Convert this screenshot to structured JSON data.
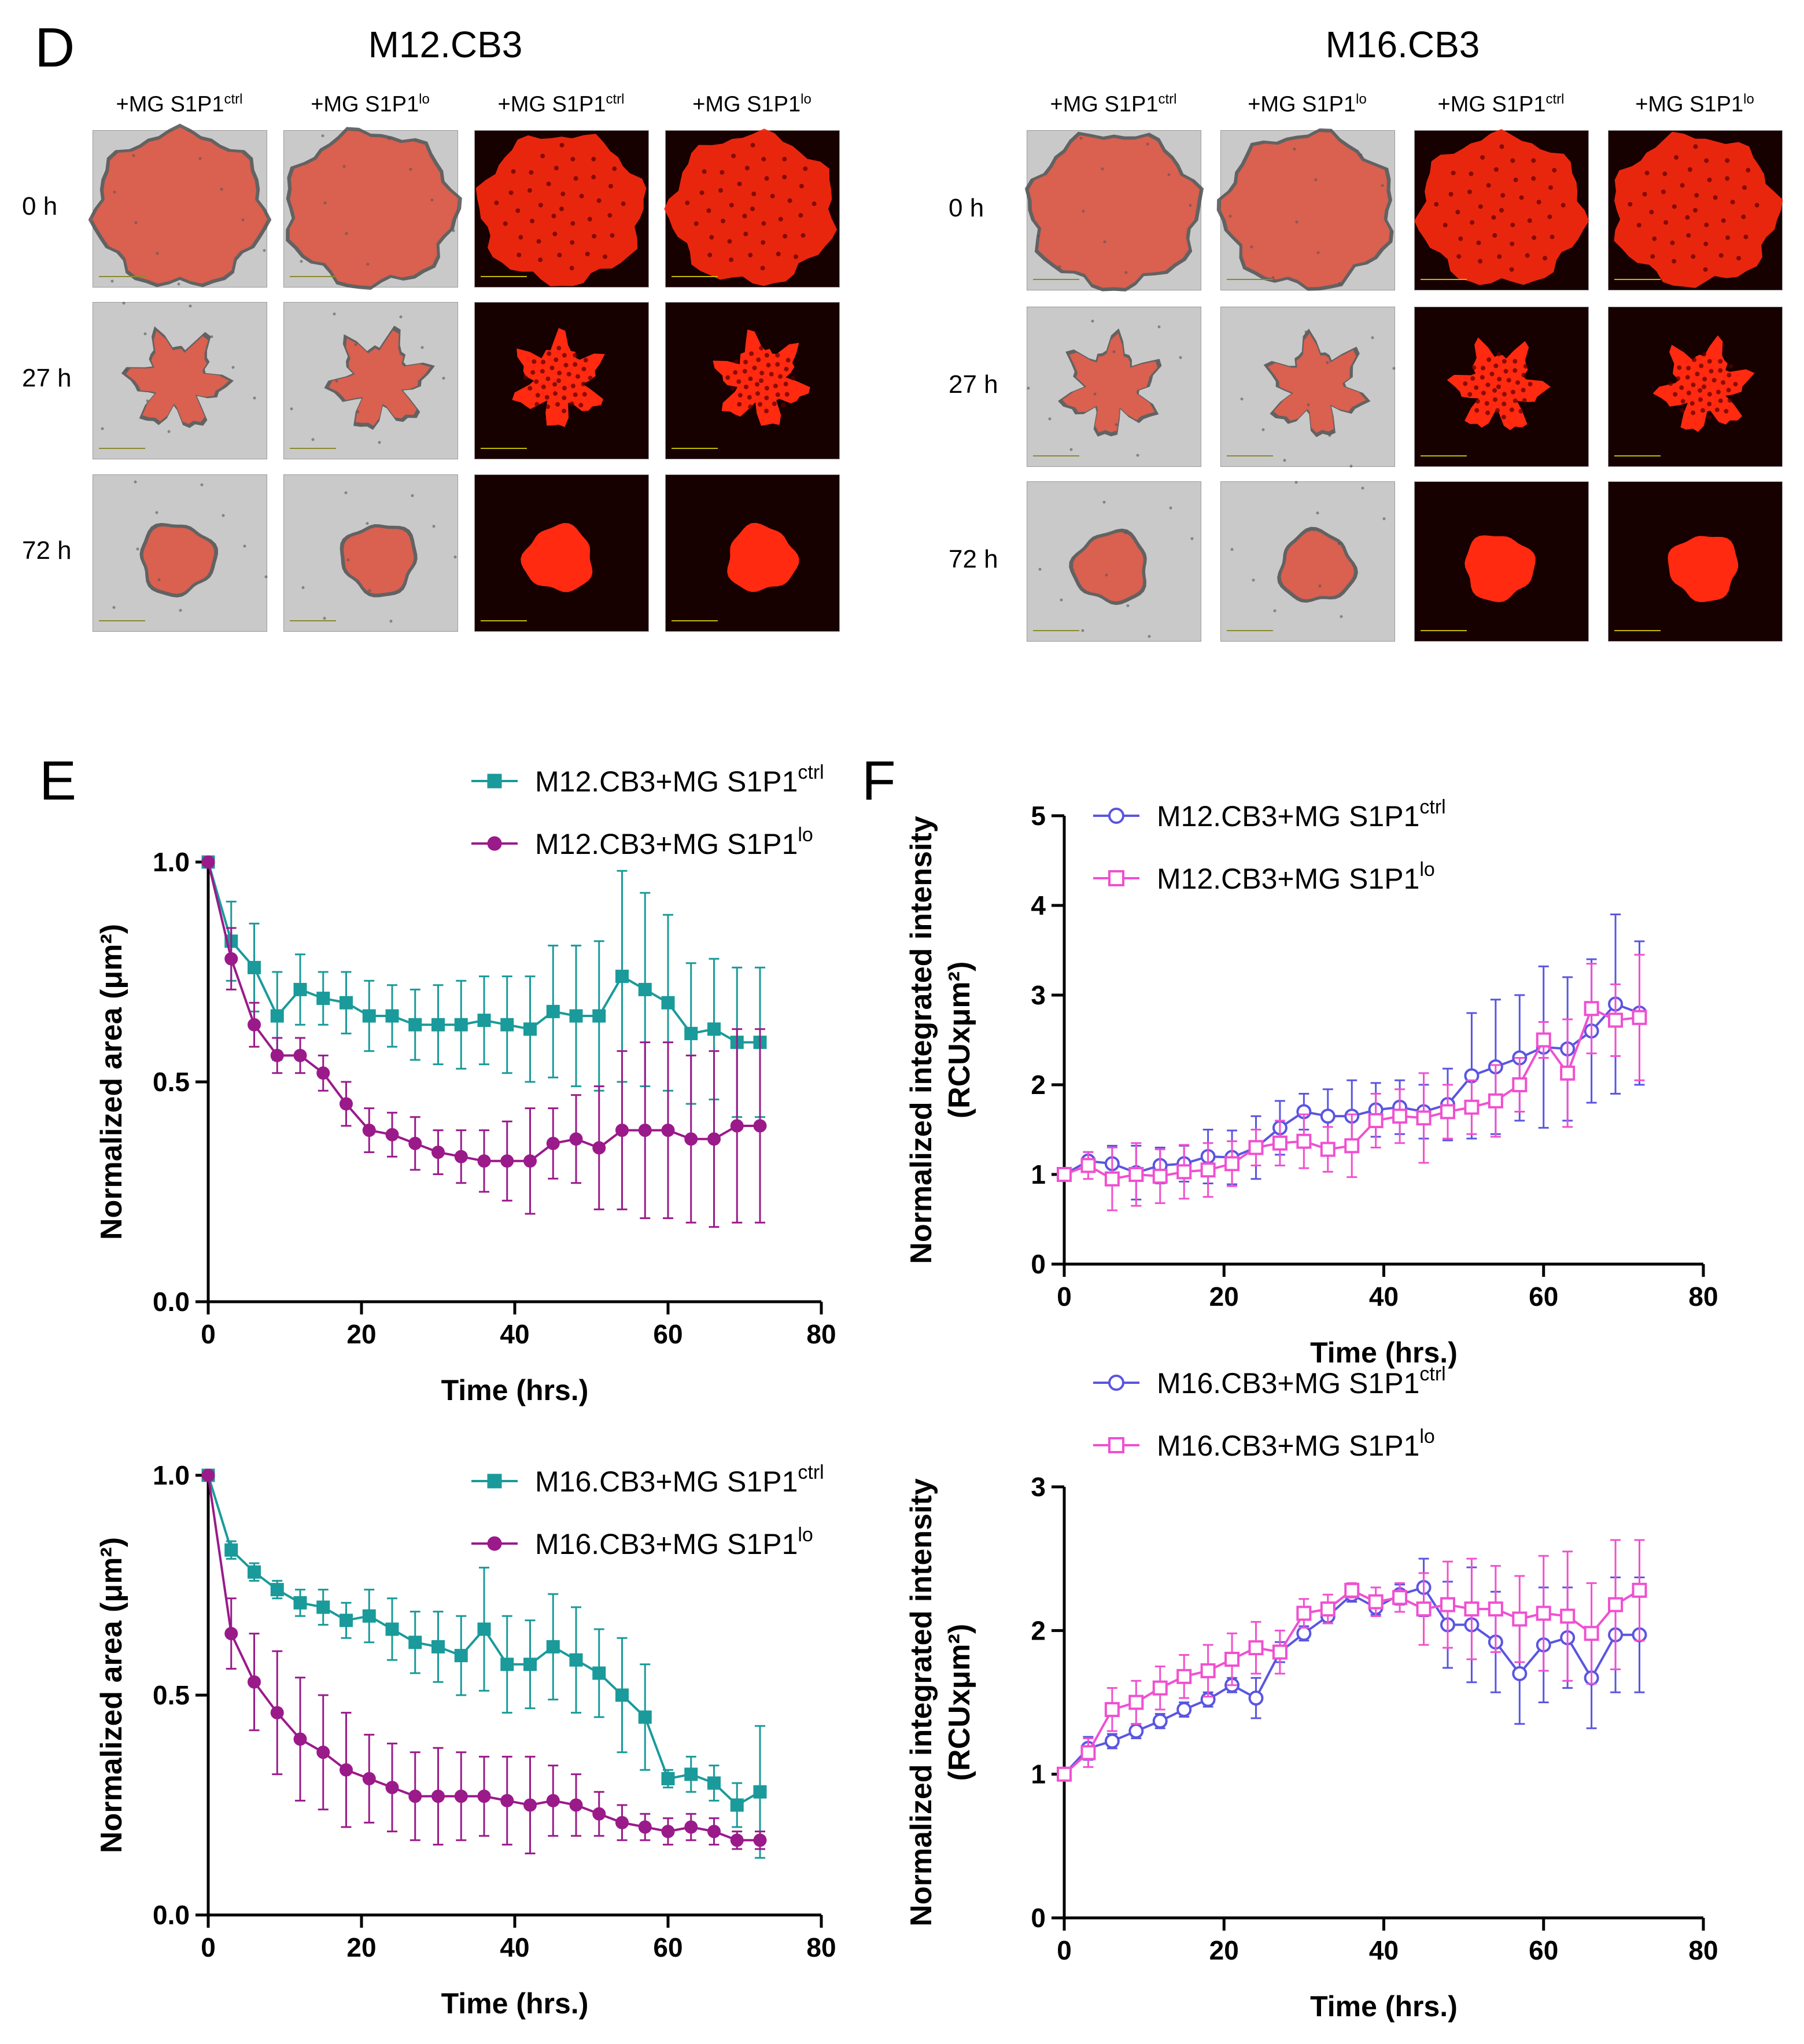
{
  "panel_labels": {
    "D": "D",
    "E": "E",
    "F": "F"
  },
  "microscopy": {
    "groups": [
      {
        "title": "M12.CB3",
        "columns": [
          {
            "base": "+MG S1P1",
            "sup": "ctrl"
          },
          {
            "base": "+MG S1P1",
            "sup": "lo"
          },
          {
            "base": "+MG S1P1",
            "sup": "ctrl"
          },
          {
            "base": "+MG S1P1",
            "sup": "lo"
          }
        ],
        "rows": [
          "0 h",
          "27 h",
          "72 h"
        ]
      },
      {
        "title": "M16.CB3",
        "columns": [
          {
            "base": "+MG S1P1",
            "sup": "ctrl"
          },
          {
            "base": "+MG S1P1",
            "sup": "lo"
          },
          {
            "base": "+MG S1P1",
            "sup": "ctrl"
          },
          {
            "base": "+MG S1P1",
            "sup": "lo"
          }
        ],
        "rows": [
          "0 h",
          "27 h",
          "72 h"
        ]
      }
    ],
    "colors": {
      "brightfield": "#c9c9c9",
      "fluorescence_bg": "#160000",
      "signal": "#ff2a10"
    }
  },
  "chart_data": [
    {
      "id": "E-top",
      "type": "line",
      "xlabel": "Time (hrs.)",
      "ylabel": "Normalized area (μm²)",
      "xlim": [
        0,
        80
      ],
      "ylim": [
        0,
        1.0
      ],
      "xticks": [
        "0",
        "20",
        "40",
        "60",
        "80"
      ],
      "yticks": [
        "0.0",
        "0.5",
        "1.0"
      ],
      "x": [
        0,
        3,
        6,
        9,
        12,
        15,
        18,
        21,
        24,
        27,
        30,
        33,
        36,
        39,
        42,
        45,
        48,
        51,
        54,
        57,
        60,
        63,
        66,
        69,
        72
      ],
      "series": [
        {
          "name": "M12.CB3+MG S1P1",
          "sup": "ctrl",
          "marker": "square",
          "color": "#1a9a9a",
          "values": [
            1.0,
            0.82,
            0.76,
            0.65,
            0.71,
            0.69,
            0.68,
            0.65,
            0.65,
            0.63,
            0.63,
            0.63,
            0.64,
            0.63,
            0.62,
            0.66,
            0.65,
            0.65,
            0.74,
            0.71,
            0.68,
            0.61,
            0.62,
            0.59,
            0.59
          ],
          "errors": [
            0,
            0.09,
            0.1,
            0.1,
            0.08,
            0.06,
            0.07,
            0.08,
            0.07,
            0.08,
            0.09,
            0.1,
            0.1,
            0.11,
            0.12,
            0.15,
            0.16,
            0.17,
            0.24,
            0.22,
            0.2,
            0.16,
            0.16,
            0.17,
            0.17
          ]
        },
        {
          "name": "M12.CB3+MG S1P1",
          "sup": "lo",
          "marker": "circle",
          "color": "#9a1a8a",
          "values": [
            1.0,
            0.78,
            0.63,
            0.56,
            0.56,
            0.52,
            0.45,
            0.39,
            0.38,
            0.36,
            0.34,
            0.33,
            0.32,
            0.32,
            0.32,
            0.36,
            0.37,
            0.35,
            0.39,
            0.39,
            0.39,
            0.37,
            0.37,
            0.4,
            0.4
          ],
          "errors": [
            0,
            0.07,
            0.05,
            0.04,
            0.04,
            0.04,
            0.05,
            0.05,
            0.05,
            0.06,
            0.05,
            0.06,
            0.07,
            0.09,
            0.12,
            0.08,
            0.1,
            0.14,
            0.18,
            0.2,
            0.2,
            0.19,
            0.2,
            0.22,
            0.22
          ]
        }
      ]
    },
    {
      "id": "E-bottom",
      "type": "line",
      "xlabel": "Time (hrs.)",
      "ylabel": "Normalized area (μm²)",
      "xlim": [
        0,
        80
      ],
      "ylim": [
        0,
        1.0
      ],
      "xticks": [
        "0",
        "20",
        "40",
        "60",
        "80"
      ],
      "yticks": [
        "0.0",
        "0.5",
        "1.0"
      ],
      "x": [
        0,
        3,
        6,
        9,
        12,
        15,
        18,
        21,
        24,
        27,
        30,
        33,
        36,
        39,
        42,
        45,
        48,
        51,
        54,
        57,
        60,
        63,
        66,
        69,
        72
      ],
      "series": [
        {
          "name": "M16.CB3+MG S1P1",
          "sup": "ctrl",
          "marker": "square",
          "color": "#1a9a9a",
          "values": [
            1.0,
            0.83,
            0.78,
            0.74,
            0.71,
            0.7,
            0.67,
            0.68,
            0.65,
            0.62,
            0.61,
            0.59,
            0.65,
            0.57,
            0.57,
            0.61,
            0.58,
            0.55,
            0.5,
            0.45,
            0.31,
            0.32,
            0.3,
            0.25,
            0.28
          ],
          "errors": [
            0,
            0.02,
            0.02,
            0.02,
            0.03,
            0.04,
            0.04,
            0.06,
            0.07,
            0.07,
            0.08,
            0.09,
            0.14,
            0.11,
            0.1,
            0.12,
            0.12,
            0.1,
            0.13,
            0.12,
            0.02,
            0.04,
            0.04,
            0.05,
            0.15
          ]
        },
        {
          "name": "M16.CB3+MG S1P1",
          "sup": "lo",
          "marker": "circle",
          "color": "#9a1a8a",
          "values": [
            1.0,
            0.64,
            0.53,
            0.46,
            0.4,
            0.37,
            0.33,
            0.31,
            0.29,
            0.27,
            0.27,
            0.27,
            0.27,
            0.26,
            0.25,
            0.26,
            0.25,
            0.23,
            0.21,
            0.2,
            0.19,
            0.2,
            0.19,
            0.17,
            0.17
          ],
          "errors": [
            0,
            0.08,
            0.11,
            0.14,
            0.14,
            0.13,
            0.13,
            0.1,
            0.1,
            0.1,
            0.11,
            0.1,
            0.09,
            0.1,
            0.11,
            0.08,
            0.07,
            0.05,
            0.04,
            0.03,
            0.03,
            0.03,
            0.03,
            0.02,
            0.02
          ]
        }
      ]
    },
    {
      "id": "F-top",
      "type": "line",
      "xlabel": "Time (hrs.)",
      "ylabel": "Normalized integrated intensity (RCUxμm²)",
      "xlim": [
        0,
        80
      ],
      "ylim": [
        0,
        5
      ],
      "xticks": [
        "0",
        "20",
        "40",
        "60",
        "80"
      ],
      "yticks": [
        "0",
        "1",
        "2",
        "3",
        "4",
        "5"
      ],
      "x": [
        0,
        3,
        6,
        9,
        12,
        15,
        18,
        21,
        24,
        27,
        30,
        33,
        36,
        39,
        42,
        45,
        48,
        51,
        54,
        57,
        60,
        63,
        66,
        69,
        72
      ],
      "series": [
        {
          "name": "M12.CB3+MG S1P1",
          "sup": "ctrl",
          "marker": "open-circle",
          "color": "#5a55e0",
          "values": [
            1.0,
            1.15,
            1.12,
            1.02,
            1.1,
            1.12,
            1.2,
            1.19,
            1.3,
            1.52,
            1.7,
            1.65,
            1.65,
            1.72,
            1.75,
            1.7,
            1.78,
            2.1,
            2.2,
            2.3,
            2.42,
            2.4,
            2.6,
            2.9,
            2.8
          ],
          "errors": [
            0,
            0.1,
            0.2,
            0.3,
            0.2,
            0.2,
            0.3,
            0.3,
            0.35,
            0.3,
            0.2,
            0.3,
            0.4,
            0.3,
            0.3,
            0.3,
            0.4,
            0.7,
            0.75,
            0.7,
            0.9,
            0.8,
            0.8,
            1.0,
            0.8
          ]
        },
        {
          "name": "M12.CB3+MG S1P1",
          "sup": "lo",
          "marker": "open-square",
          "color": "#f050d0",
          "values": [
            1.0,
            1.1,
            0.95,
            1.0,
            0.98,
            1.03,
            1.05,
            1.12,
            1.3,
            1.35,
            1.37,
            1.28,
            1.32,
            1.6,
            1.65,
            1.63,
            1.7,
            1.75,
            1.82,
            2.0,
            2.5,
            2.13,
            2.85,
            2.72,
            2.75
          ],
          "errors": [
            0,
            0.15,
            0.35,
            0.35,
            0.3,
            0.3,
            0.3,
            0.25,
            0.2,
            0.25,
            0.3,
            0.25,
            0.35,
            0.3,
            0.3,
            0.5,
            0.3,
            0.3,
            0.4,
            0.3,
            0.2,
            0.6,
            0.5,
            0.4,
            0.7
          ]
        }
      ]
    },
    {
      "id": "F-bottom",
      "type": "line",
      "xlabel": "Time (hrs.)",
      "ylabel": "Normalized integrated intensity (RCUxμm²)",
      "xlim": [
        0,
        80
      ],
      "ylim": [
        0,
        3
      ],
      "xticks": [
        "0",
        "20",
        "40",
        "60",
        "80"
      ],
      "yticks": [
        "0",
        "1",
        "2",
        "3"
      ],
      "x": [
        0,
        3,
        6,
        9,
        12,
        15,
        18,
        21,
        24,
        27,
        30,
        33,
        36,
        39,
        42,
        45,
        48,
        51,
        54,
        57,
        60,
        63,
        66,
        69,
        72
      ],
      "series": [
        {
          "name": "M16.CB3+MG S1P1",
          "sup": "ctrl",
          "marker": "open-circle",
          "color": "#5a55e0",
          "values": [
            1.0,
            1.18,
            1.23,
            1.3,
            1.37,
            1.45,
            1.52,
            1.62,
            1.53,
            1.85,
            1.98,
            2.1,
            2.25,
            2.16,
            2.25,
            2.3,
            2.04,
            2.04,
            1.92,
            1.7,
            1.9,
            1.95,
            1.67,
            1.97,
            1.97
          ],
          "errors": [
            0,
            0.08,
            0.05,
            0.05,
            0.05,
            0.05,
            0.05,
            0.05,
            0.14,
            0.07,
            0.05,
            0.05,
            0.05,
            0.05,
            0.07,
            0.2,
            0.3,
            0.4,
            0.35,
            0.35,
            0.4,
            0.35,
            0.35,
            0.4,
            0.4
          ]
        },
        {
          "name": "M16.CB3+MG S1P1",
          "sup": "lo",
          "marker": "open-square",
          "color": "#f050d0",
          "values": [
            1.0,
            1.15,
            1.45,
            1.5,
            1.6,
            1.68,
            1.72,
            1.8,
            1.88,
            1.85,
            2.12,
            2.15,
            2.28,
            2.2,
            2.23,
            2.15,
            2.18,
            2.15,
            2.15,
            2.08,
            2.12,
            2.1,
            1.98,
            2.18,
            2.28
          ],
          "errors": [
            0,
            0.1,
            0.15,
            0.15,
            0.15,
            0.15,
            0.18,
            0.18,
            0.18,
            0.15,
            0.1,
            0.1,
            0.05,
            0.1,
            0.1,
            0.25,
            0.3,
            0.35,
            0.3,
            0.3,
            0.4,
            0.45,
            0.35,
            0.45,
            0.35
          ]
        }
      ]
    }
  ]
}
